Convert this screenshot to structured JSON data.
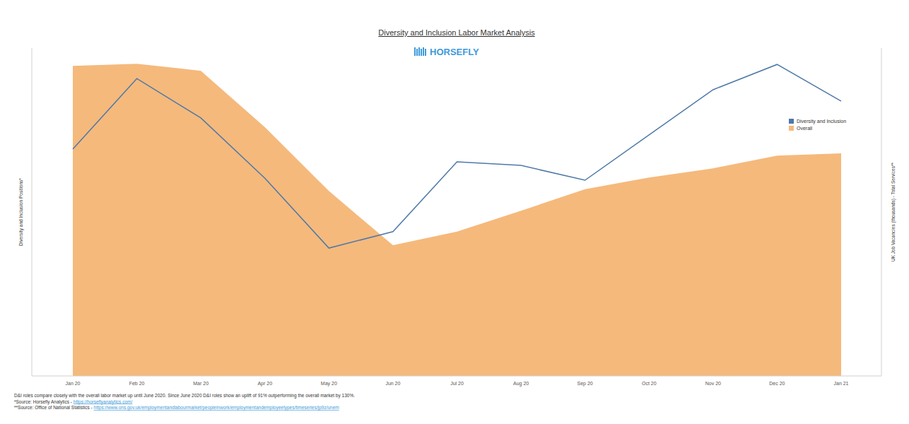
{
  "chart_data": {
    "type": "line",
    "title": "Diversity and Inclusion Labor Market Analysis",
    "logo": "HORSEFLY",
    "y_label": "Diversity and Inclusion Positions*",
    "y2_label": "UK Job Vacancies (thousands) - Total Services**",
    "categories": [
      "Jan 20",
      "Feb 20",
      "Mar 20",
      "Apr 20",
      "May 20",
      "Jun 20",
      "Jul 20",
      "Aug 20",
      "Sep 20",
      "Oct 20",
      "Nov 20",
      "Dec 20",
      "Jan 21"
    ],
    "series": [
      {
        "name": "Diversity and Inclusion",
        "type": "line",
        "color": "#4e79a7",
        "values": [
          69.2,
          90.7,
          78.7,
          60.3,
          39.0,
          44.0,
          65.3,
          64.2,
          59.7,
          73.5,
          87.3,
          95.0,
          83.8
        ]
      },
      {
        "name": "Overall",
        "type": "area",
        "axis": "y2",
        "color": "#f5b97c",
        "values": [
          709,
          714,
          698,
          569,
          423,
          299,
          330,
          378,
          427,
          454,
          475,
          504,
          509
        ]
      }
    ],
    "ylim": [
      0,
      100
    ],
    "yticks": [
      0,
      100
    ],
    "y2lim": [
      0,
      750
    ],
    "y2ticks": [
      0,
      750
    ],
    "tick_labels": "x",
    "grid": false,
    "legend": "right",
    "annotations": [
      {
        "text": "D&I roles compare closely with the overall labor market up until June 2020. Since June 2020 D&I roles show an uplift of 91% outperforming the overall market by 130%."
      },
      {
        "text": "*Source: Horsefly Analytics - ",
        "link": "https://horseflyanalytics.com/"
      },
      {
        "text": "**Source: Office of National Statistics - ",
        "link": "https://www.ons.gov.uk/employmentandlabourmarket/peopleinwork/employmentandemployeetypes/timeseries/jp9z/unem"
      }
    ]
  }
}
